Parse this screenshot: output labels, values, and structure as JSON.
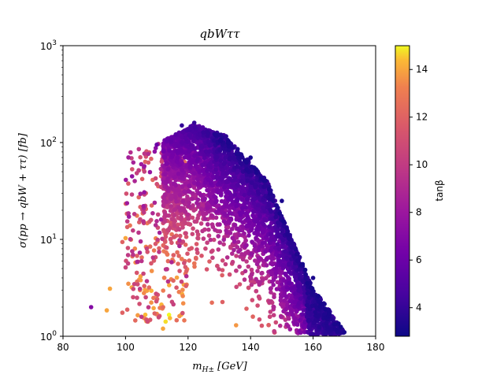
{
  "chart_data": {
    "type": "scatter",
    "title": "qbWττ",
    "xlabel": "m_{H±} [GeV]",
    "ylabel": "σ(pp → qbW + ττ) [fb]",
    "xlim": [
      80,
      180
    ],
    "ylim": [
      1,
      1000
    ],
    "yscale": "log",
    "x_ticks": [
      "80",
      "100",
      "120",
      "140",
      "160",
      "180"
    ],
    "y_ticks": [
      {
        "value": 1,
        "base": "10",
        "exp": "0"
      },
      {
        "value": 10,
        "base": "10",
        "exp": "1"
      },
      {
        "value": 100,
        "base": "10",
        "exp": "2"
      },
      {
        "value": 1000,
        "base": "10",
        "exp": "3"
      }
    ],
    "colorbar": {
      "label": "tanβ",
      "range": [
        2.8,
        15
      ],
      "ticks": [
        "4",
        "6",
        "8",
        "10",
        "12",
        "14"
      ],
      "tick_values": [
        4,
        6,
        8,
        10,
        12,
        14
      ],
      "colormap": "plasma"
    },
    "grid": false,
    "points_sample": [
      {
        "x": 89,
        "y": 2.0,
        "c": 7
      },
      {
        "x": 94,
        "y": 1.85,
        "c": 14
      },
      {
        "x": 95,
        "y": 3.1,
        "c": 14
      },
      {
        "x": 99,
        "y": 1.75,
        "c": 12
      },
      {
        "x": 99,
        "y": 9.4,
        "c": 12
      },
      {
        "x": 100,
        "y": 10.3,
        "c": 14
      },
      {
        "x": 102,
        "y": 3.2,
        "c": 14
      },
      {
        "x": 106,
        "y": 3.3,
        "c": 12
      },
      {
        "x": 109,
        "y": 1.95,
        "c": 14
      },
      {
        "x": 112,
        "y": 1.2,
        "c": 14
      },
      {
        "x": 106,
        "y": 57,
        "c": 8
      },
      {
        "x": 110,
        "y": 95,
        "c": 6
      },
      {
        "x": 118,
        "y": 150,
        "c": 4
      },
      {
        "x": 122,
        "y": 160,
        "c": 4
      },
      {
        "x": 130,
        "y": 120,
        "c": 3.5
      },
      {
        "x": 140,
        "y": 70,
        "c": 3.2
      },
      {
        "x": 150,
        "y": 25,
        "c": 3.2
      },
      {
        "x": 160,
        "y": 4,
        "c": 3.2
      },
      {
        "x": 170,
        "y": 1.1,
        "c": 3.2
      }
    ]
  }
}
